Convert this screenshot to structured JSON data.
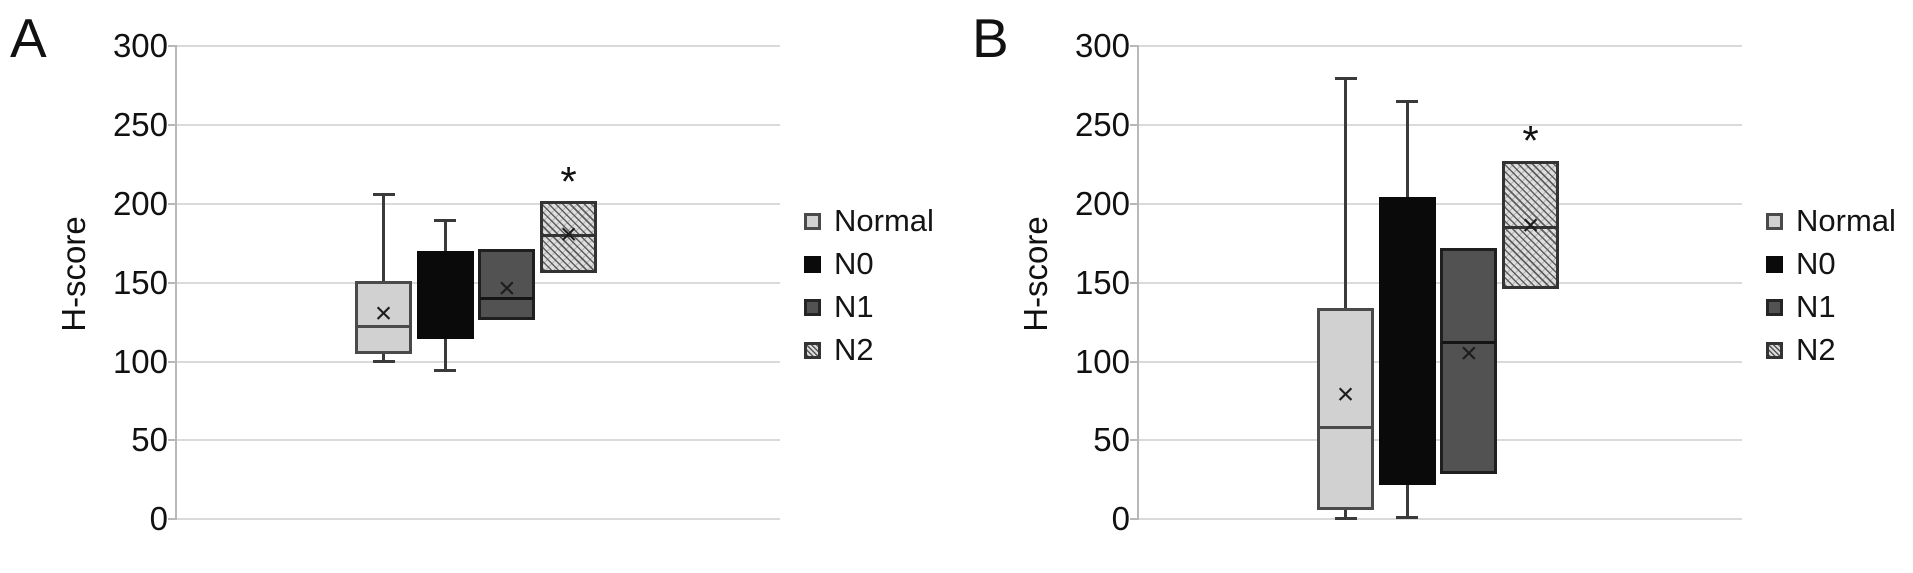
{
  "figure_title": "",
  "mean_marker_symbol": "×",
  "colors": {
    "box_light_fill": "#d1d1d1",
    "box_black_fill": "#0a0a0a",
    "box_dark_fill": "#525252",
    "box_border": "#404040",
    "hatch_line": "#505050",
    "gridline": "#dadada",
    "axis": "#b8b8b8",
    "text": "#111111"
  },
  "chart_data": [
    {
      "type": "boxplot",
      "panel_label": "A",
      "ylabel": "H-score",
      "ylim": [
        0,
        300
      ],
      "yticks": [
        0,
        50,
        100,
        150,
        200,
        250,
        300
      ],
      "grid": true,
      "legend_position": "right",
      "legend": [
        {
          "label": "Normal",
          "style": "light"
        },
        {
          "label": "N0",
          "style": "black"
        },
        {
          "label": "N1",
          "style": "dark"
        },
        {
          "label": "N2",
          "style": "hatch"
        }
      ],
      "groups": [
        {
          "label": "Normal",
          "style": "light",
          "whisker_low": 100,
          "q1": 105,
          "median": 122,
          "mean": 130,
          "q3": 151,
          "whisker_high": 206,
          "annotation": null,
          "annotation_value": null
        },
        {
          "label": "N0",
          "style": "black",
          "whisker_low": 94,
          "q1": 114,
          "median": null,
          "mean": null,
          "q3": 170,
          "whisker_high": 190,
          "annotation": null,
          "annotation_value": null
        },
        {
          "label": "N1",
          "style": "dark",
          "whisker_low": null,
          "q1": 126,
          "median": 140,
          "mean": 146,
          "q3": 171,
          "whisker_high": null,
          "annotation": null,
          "annotation_value": null
        },
        {
          "label": "N2",
          "style": "hatch",
          "whisker_low": null,
          "q1": 156,
          "median": 180,
          "mean": 180,
          "q3": 202,
          "whisker_high": null,
          "annotation": "*",
          "annotation_value": 219
        }
      ]
    },
    {
      "type": "boxplot",
      "panel_label": "B",
      "ylabel": "H-score",
      "ylim": [
        0,
        300
      ],
      "yticks": [
        0,
        50,
        100,
        150,
        200,
        250,
        300
      ],
      "grid": true,
      "legend_position": "right",
      "legend": [
        {
          "label": "Normal",
          "style": "light"
        },
        {
          "label": "N0",
          "style": "black"
        },
        {
          "label": "N1",
          "style": "dark"
        },
        {
          "label": "N2",
          "style": "hatch"
        }
      ],
      "groups": [
        {
          "label": "Normal",
          "style": "light",
          "whisker_low": 0,
          "q1": 6,
          "median": 58,
          "mean": 79,
          "q3": 134,
          "whisker_high": 280,
          "annotation": null,
          "annotation_value": null
        },
        {
          "label": "N0",
          "style": "black",
          "whisker_low": 1,
          "q1": 22,
          "median": null,
          "mean": null,
          "q3": 204,
          "whisker_high": 265,
          "annotation": null,
          "annotation_value": null
        },
        {
          "label": "N1",
          "style": "dark",
          "whisker_low": null,
          "q1": 29,
          "median": 112,
          "mean": 105,
          "q3": 172,
          "whisker_high": null,
          "annotation": null,
          "annotation_value": null
        },
        {
          "label": "N2",
          "style": "hatch",
          "whisker_low": null,
          "q1": 146,
          "median": 185,
          "mean": 186,
          "q3": 227,
          "whisker_high": null,
          "annotation": "*",
          "annotation_value": 245
        }
      ]
    }
  ]
}
